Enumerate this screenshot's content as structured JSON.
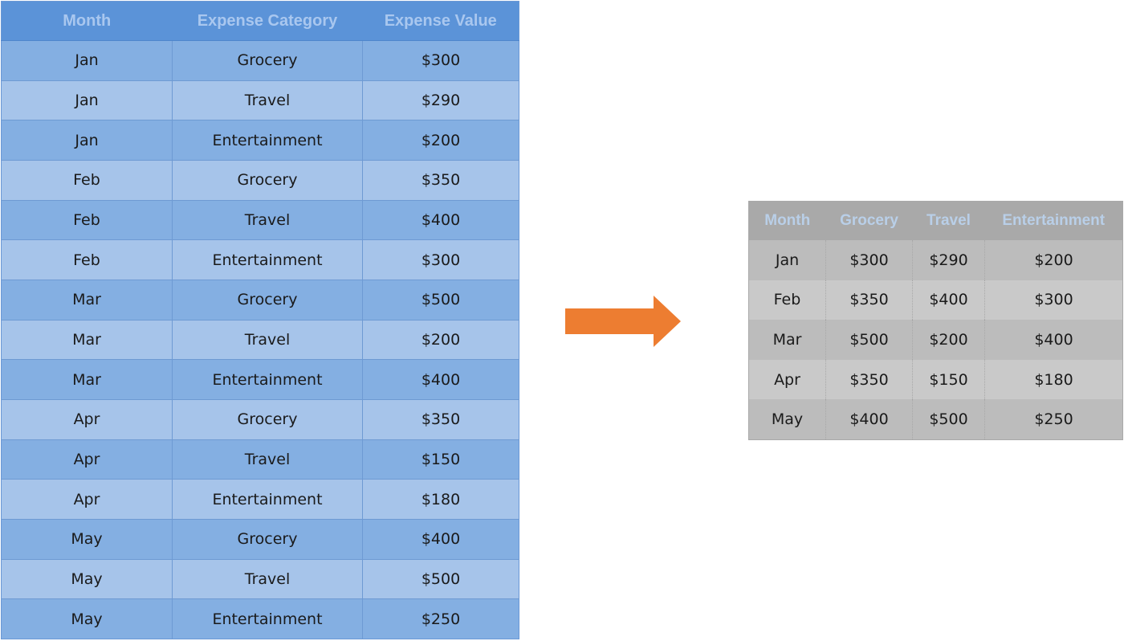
{
  "source_table": {
    "headers": [
      "Month",
      "Expense Category",
      "Expense Value"
    ],
    "rows": [
      [
        "Jan",
        "Grocery",
        "$300"
      ],
      [
        "Jan",
        "Travel",
        "$290"
      ],
      [
        "Jan",
        "Entertainment",
        "$200"
      ],
      [
        "Feb",
        "Grocery",
        "$350"
      ],
      [
        "Feb",
        "Travel",
        "$400"
      ],
      [
        "Feb",
        "Entertainment",
        "$300"
      ],
      [
        "Mar",
        "Grocery",
        "$500"
      ],
      [
        "Mar",
        "Travel",
        "$200"
      ],
      [
        "Mar",
        "Entertainment",
        "$400"
      ],
      [
        "Apr",
        "Grocery",
        "$350"
      ],
      [
        "Apr",
        "Travel",
        "$150"
      ],
      [
        "Apr",
        "Entertainment",
        "$180"
      ],
      [
        "May",
        "Grocery",
        "$400"
      ],
      [
        "May",
        "Travel",
        "$500"
      ],
      [
        "May",
        "Entertainment",
        "$250"
      ]
    ]
  },
  "arrow": {
    "color": "#ed7d31",
    "icon": "right-arrow-icon"
  },
  "pivot_table": {
    "headers": [
      "Month",
      "Grocery",
      "Travel",
      "Entertainment"
    ],
    "rows": [
      [
        "Jan",
        "$300",
        "$290",
        "$200"
      ],
      [
        "Feb",
        "$350",
        "$400",
        "$300"
      ],
      [
        "Mar",
        "$500",
        "$200",
        "$400"
      ],
      [
        "Apr",
        "$350",
        "$150",
        "$180"
      ],
      [
        "May",
        "$400",
        "$500",
        "$250"
      ]
    ]
  }
}
